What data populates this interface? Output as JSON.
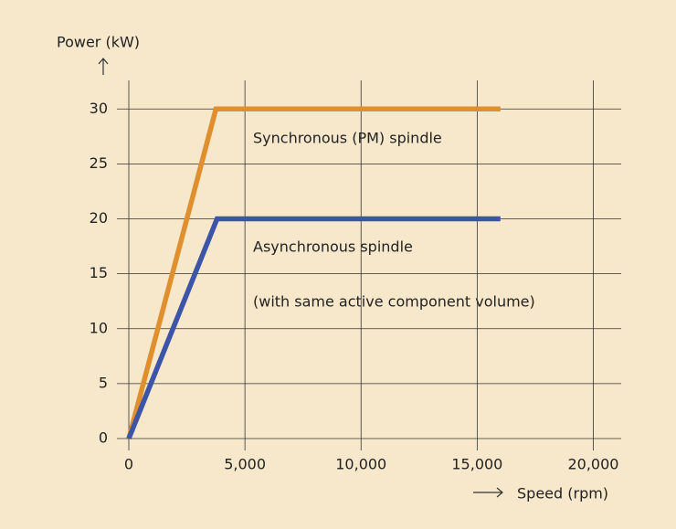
{
  "chart_data": {
    "type": "line",
    "y_axis_label": "Power (kW)",
    "x_axis_label": "Speed (rpm)",
    "annotations": [
      "Synchronous (PM) spindle",
      "Asynchronous spindle",
      "(with same active component volume)"
    ],
    "series": [
      {
        "color": "#e08f2e",
        "x": [
          0,
          3750,
          16000
        ],
        "values": [
          0,
          30,
          30
        ]
      },
      {
        "color": "#3d55a8",
        "x": [
          0,
          3800,
          16000
        ],
        "values": [
          0,
          20,
          20
        ]
      }
    ],
    "xlim": [
      0,
      21200
    ],
    "ylim": [
      0,
      32.6
    ],
    "xticks": [
      0,
      {
        "value": 5000,
        "label": "5,000"
      },
      {
        "value": 10000,
        "label": "10,000"
      },
      {
        "value": 15000,
        "label": "15,000"
      },
      {
        "value": 20000,
        "label": "20,000"
      }
    ],
    "yticks": [
      0,
      5,
      10,
      15,
      20,
      25,
      30
    ],
    "grid": true
  }
}
